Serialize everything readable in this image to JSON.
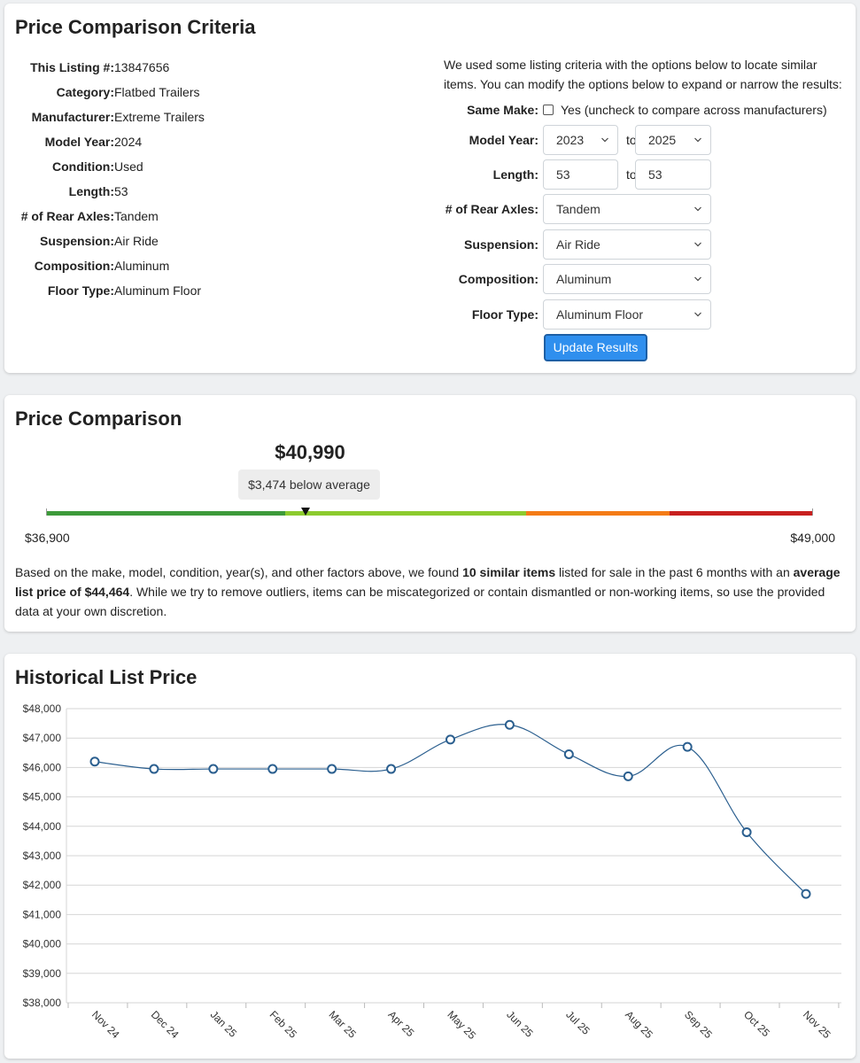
{
  "criteria": {
    "title": "Price Comparison Criteria",
    "specs": [
      {
        "key": "This Listing #:",
        "value": "13847656"
      },
      {
        "key": "Category:",
        "value": "Flatbed Trailers"
      },
      {
        "key": "Manufacturer:",
        "value": "Extreme Trailers"
      },
      {
        "key": "Model Year:",
        "value": "2024"
      },
      {
        "key": "Condition:",
        "value": "Used"
      },
      {
        "key": "Length:",
        "value": "53"
      },
      {
        "key": "# of Rear Axles:",
        "value": "Tandem"
      },
      {
        "key": "Suspension:",
        "value": "Air Ride"
      },
      {
        "key": "Composition:",
        "value": "Aluminum"
      },
      {
        "key": "Floor Type:",
        "value": "Aluminum Floor"
      }
    ],
    "intro": "We used some listing criteria with the options below to locate similar items. You can modify the options below to expand or narrow the results:",
    "same_make_label": "Same Make:",
    "same_make_option": "Yes (uncheck to compare across manufacturers)",
    "same_make_checked": false,
    "model_year_label": "Model Year:",
    "model_year_from": "2023",
    "model_year_to": "2025",
    "to_label": "to",
    "length_label": "Length:",
    "length_from": "53",
    "length_to": "53",
    "axles_label": "# of Rear Axles:",
    "axles_value": "Tandem",
    "suspension_label": "Suspension:",
    "suspension_value": "Air Ride",
    "composition_label": "Composition:",
    "composition_value": "Aluminum",
    "floor_label": "Floor Type:",
    "floor_value": "Aluminum Floor",
    "update_button": "Update Results"
  },
  "comparison": {
    "title": "Price Comparison",
    "price": "$40,990",
    "delta": "$3,474 below average",
    "range_low": "$36,900",
    "range_high": "$49,000",
    "summary_pre": "Based on the make, model, condition, year(s), and other factors above, we found ",
    "summary_bold1": "10 similar items",
    "summary_mid": " listed for sale in the past 6 months with an ",
    "summary_bold2": "average list price of $44,464",
    "summary_post": ". While we try to remove outliers, items can be miscategorized or contain dismantled or non-working items, so use the provided data at your own discretion.",
    "colors": {
      "green": "#3d9a3a",
      "lightgreen": "#8ccb2e",
      "orange": "#f47b16",
      "red": "#c8201f"
    }
  },
  "history": {
    "title": "Historical List Price"
  },
  "chart_data": {
    "type": "line",
    "title": "Historical List Price",
    "categories": [
      "Nov 24",
      "Dec 24",
      "Jan 25",
      "Feb 25",
      "Mar 25",
      "Apr 25",
      "May 25",
      "Jun 25",
      "Jul 25",
      "Aug 25",
      "Sep 25",
      "Oct 25",
      "Nov 25"
    ],
    "values": [
      46200,
      45950,
      45950,
      45950,
      45950,
      45950,
      46950,
      47450,
      46450,
      45700,
      46700,
      43800,
      41700
    ],
    "ylim": [
      38000,
      48000
    ],
    "yticks": [
      "$38,000",
      "$39,000",
      "$40,000",
      "$41,000",
      "$42,000",
      "$43,000",
      "$44,000",
      "$45,000",
      "$46,000",
      "$47,000",
      "$48,000"
    ],
    "grid": true,
    "line_color": "#2b5f8f"
  }
}
